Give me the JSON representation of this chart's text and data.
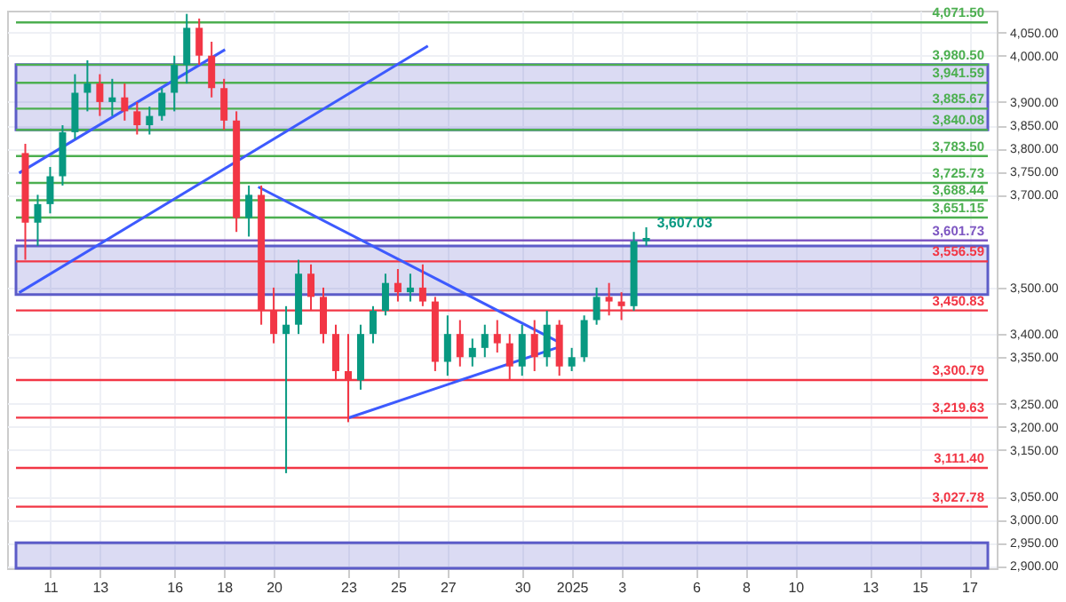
{
  "chart_data": {
    "type": "candlestick",
    "x": [
      "2024-12-10T00:00",
      "2024-12-10T12:00",
      "2024-12-11T00:00",
      "2024-12-11T12:00",
      "2024-12-12T00:00",
      "2024-12-12T12:00",
      "2024-12-13T00:00",
      "2024-12-13T12:00",
      "2024-12-14T00:00",
      "2024-12-14T12:00",
      "2024-12-15T00:00",
      "2024-12-15T12:00",
      "2024-12-16T00:00",
      "2024-12-16T12:00",
      "2024-12-17T00:00",
      "2024-12-17T12:00",
      "2024-12-18T00:00",
      "2024-12-18T12:00",
      "2024-12-19T00:00",
      "2024-12-19T12:00",
      "2024-12-20T00:00",
      "2024-12-20T12:00",
      "2024-12-21T00:00",
      "2024-12-21T12:00",
      "2024-12-22T00:00",
      "2024-12-22T12:00",
      "2024-12-23T00:00",
      "2024-12-23T12:00",
      "2024-12-24T00:00",
      "2024-12-24T12:00",
      "2024-12-25T00:00",
      "2024-12-25T12:00",
      "2024-12-26T00:00",
      "2024-12-26T12:00",
      "2024-12-27T00:00",
      "2024-12-27T12:00",
      "2024-12-28T00:00",
      "2024-12-28T12:00",
      "2024-12-29T00:00",
      "2024-12-29T12:00",
      "2024-12-30T00:00",
      "2024-12-30T12:00",
      "2024-12-31T00:00",
      "2024-12-31T12:00",
      "2025-01-01T00:00",
      "2025-01-01T12:00",
      "2025-01-02T00:00",
      "2025-01-02T12:00",
      "2025-01-03T00:00",
      "2025-01-03T12:00",
      "2025-01-04T00:00"
    ],
    "ohlc": [
      [
        3790,
        3810,
        3560,
        3640
      ],
      [
        3640,
        3700,
        3590,
        3680
      ],
      [
        3680,
        3760,
        3660,
        3740
      ],
      [
        3740,
        3850,
        3720,
        3835
      ],
      [
        3835,
        3960,
        3820,
        3920
      ],
      [
        3920,
        3990,
        3880,
        3940
      ],
      [
        3940,
        3960,
        3870,
        3900
      ],
      [
        3900,
        3950,
        3870,
        3910
      ],
      [
        3910,
        3940,
        3860,
        3880
      ],
      [
        3880,
        3900,
        3830,
        3850
      ],
      [
        3850,
        3890,
        3830,
        3870
      ],
      [
        3870,
        3930,
        3860,
        3920
      ],
      [
        3920,
        4000,
        3880,
        3980
      ],
      [
        3980,
        4090,
        3940,
        4060
      ],
      [
        4060,
        4080,
        3980,
        4000
      ],
      [
        4000,
        4030,
        3910,
        3930
      ],
      [
        3930,
        3950,
        3840,
        3860
      ],
      [
        3860,
        3880,
        3620,
        3650
      ],
      [
        3650,
        3720,
        3610,
        3700
      ],
      [
        3700,
        3720,
        3420,
        3450
      ],
      [
        3450,
        3500,
        3380,
        3400
      ],
      [
        3400,
        3460,
        3100,
        3420
      ],
      [
        3420,
        3560,
        3400,
        3530
      ],
      [
        3530,
        3550,
        3450,
        3480
      ],
      [
        3480,
        3500,
        3380,
        3400
      ],
      [
        3400,
        3420,
        3300,
        3320
      ],
      [
        3320,
        3400,
        3210,
        3300
      ],
      [
        3300,
        3420,
        3280,
        3400
      ],
      [
        3400,
        3460,
        3380,
        3450
      ],
      [
        3450,
        3530,
        3440,
        3510
      ],
      [
        3510,
        3540,
        3470,
        3490
      ],
      [
        3490,
        3530,
        3470,
        3500
      ],
      [
        3500,
        3550,
        3460,
        3470
      ],
      [
        3470,
        3480,
        3320,
        3340
      ],
      [
        3340,
        3440,
        3310,
        3400
      ],
      [
        3400,
        3430,
        3330,
        3350
      ],
      [
        3350,
        3390,
        3330,
        3370
      ],
      [
        3370,
        3420,
        3350,
        3400
      ],
      [
        3400,
        3430,
        3360,
        3380
      ],
      [
        3380,
        3400,
        3300,
        3330
      ],
      [
        3330,
        3420,
        3310,
        3400
      ],
      [
        3400,
        3430,
        3320,
        3350
      ],
      [
        3350,
        3450,
        3330,
        3420
      ],
      [
        3420,
        3430,
        3310,
        3330
      ],
      [
        3330,
        3370,
        3320,
        3350
      ],
      [
        3350,
        3440,
        3340,
        3430
      ],
      [
        3430,
        3500,
        3420,
        3480
      ],
      [
        3480,
        3510,
        3440,
        3470
      ],
      [
        3470,
        3490,
        3430,
        3460
      ],
      [
        3460,
        3620,
        3450,
        3600
      ],
      [
        3600,
        3630,
        3590,
        3607
      ]
    ],
    "colors": [
      "#f23645",
      "#089981",
      "#089981",
      "#089981",
      "#089981",
      "#089981",
      "#f23645",
      "#089981",
      "#f23645",
      "#f23645",
      "#089981",
      "#089981",
      "#089981",
      "#089981",
      "#f23645",
      "#f23645",
      "#f23645",
      "#f23645",
      "#089981",
      "#f23645",
      "#f23645",
      "#089981",
      "#089981",
      "#f23645",
      "#f23645",
      "#f23645",
      "#f23645",
      "#089981",
      "#089981",
      "#089981",
      "#f23645",
      "#089981",
      "#f23645",
      "#f23645",
      "#089981",
      "#f23645",
      "#089981",
      "#089981",
      "#f23645",
      "#f23645",
      "#089981",
      "#f23645",
      "#089981",
      "#f23645",
      "#089981",
      "#089981",
      "#089981",
      "#f23645",
      "#f23645",
      "#089981",
      "#089981"
    ],
    "xlim": [
      "2024-12-09T15:00",
      "2025-01-17T18:00"
    ],
    "xticks": [
      {
        "value": "2024-12-11",
        "label": "11"
      },
      {
        "value": "2024-12-13",
        "label": "13"
      },
      {
        "value": "2024-12-16",
        "label": "16"
      },
      {
        "value": "2024-12-18",
        "label": "18"
      },
      {
        "value": "2024-12-20",
        "label": "20"
      },
      {
        "value": "2024-12-23",
        "label": "23"
      },
      {
        "value": "2024-12-25",
        "label": "25"
      },
      {
        "value": "2024-12-27",
        "label": "27"
      },
      {
        "value": "2024-12-30",
        "label": "30"
      },
      {
        "value": "2025-01-01",
        "label": "2025"
      },
      {
        "value": "2025-01-03",
        "label": "3"
      },
      {
        "value": "2025-01-06",
        "label": "6"
      },
      {
        "value": "2025-01-08",
        "label": "8"
      },
      {
        "value": "2025-01-10",
        "label": "10"
      },
      {
        "value": "2025-01-13",
        "label": "13"
      },
      {
        "value": "2025-01-15",
        "label": "15"
      },
      {
        "value": "2025-01-17",
        "label": "17"
      }
    ],
    "ylim": [
      2895,
      4097
    ],
    "yticks": [
      {
        "value": 2900,
        "label": "2,900.00"
      },
      {
        "value": 2950,
        "label": "2,950.00"
      },
      {
        "value": 3000,
        "label": "3,000.00"
      },
      {
        "value": 3050,
        "label": "3,050.00"
      },
      {
        "value": 3150,
        "label": "3,150.00"
      },
      {
        "value": 3200,
        "label": "3,200.00"
      },
      {
        "value": 3250,
        "label": "3,250.00"
      },
      {
        "value": 3350,
        "label": "3,350.00"
      },
      {
        "value": 3400,
        "label": "3,400.00"
      },
      {
        "value": 3500,
        "label": "3,500.00"
      },
      {
        "value": 3700,
        "label": "3,700.00"
      },
      {
        "value": 3750,
        "label": "3,750.00"
      },
      {
        "value": 3800,
        "label": "3,800.00"
      },
      {
        "value": 3850,
        "label": "3,850.00"
      },
      {
        "value": 3900,
        "label": "3,900.00"
      },
      {
        "value": 4000,
        "label": "4,000.00"
      },
      {
        "value": 4050,
        "label": "4,050.00"
      }
    ],
    "grid": true,
    "ref_lines": [
      {
        "axis": "y",
        "value": 4071.5,
        "label": "4,071.50",
        "color": "#4caf50"
      },
      {
        "axis": "y",
        "value": 3980.5,
        "label": "3,980.50",
        "color": "#4caf50"
      },
      {
        "axis": "y",
        "value": 3941.59,
        "label": "3,941.59",
        "color": "#4caf50"
      },
      {
        "axis": "y",
        "value": 3885.67,
        "label": "3,885.67",
        "color": "#4caf50"
      },
      {
        "axis": "y",
        "value": 3840.08,
        "label": "3,840.08",
        "color": "#4caf50"
      },
      {
        "axis": "y",
        "value": 3783.5,
        "label": "3,783.50",
        "color": "#4caf50"
      },
      {
        "axis": "y",
        "value": 3725.73,
        "label": "3,725.73",
        "color": "#4caf50"
      },
      {
        "axis": "y",
        "value": 3688.44,
        "label": "3,688.44",
        "color": "#4caf50"
      },
      {
        "axis": "y",
        "value": 3651.15,
        "label": "3,651.15",
        "color": "#4caf50"
      },
      {
        "axis": "y",
        "value": 3601.73,
        "label": "3,601.73",
        "color": "#7e57c2"
      },
      {
        "axis": "y",
        "value": 3556.59,
        "label": "3,556.59",
        "color": "#f23645"
      },
      {
        "axis": "y",
        "value": 3450.83,
        "label": "3,450.83",
        "color": "#f23645"
      },
      {
        "axis": "y",
        "value": 3300.79,
        "label": "3,300.79",
        "color": "#f23645"
      },
      {
        "axis": "y",
        "value": 3219.63,
        "label": "3,219.63",
        "color": "#f23645"
      },
      {
        "axis": "y",
        "value": 3111.4,
        "label": "3,111.40",
        "color": "#f23645"
      },
      {
        "axis": "y",
        "value": 3027.78,
        "label": "3,027.78",
        "color": "#f23645"
      }
    ],
    "bands": [
      {
        "axis": "y",
        "from": 3840.08,
        "to": 3980.5,
        "color": "#5c5cc8"
      },
      {
        "axis": "y",
        "from": 3485,
        "to": 3590,
        "color": "#5c5cc8"
      },
      {
        "axis": "y",
        "from": 2895,
        "to": 2950,
        "color": "#5c5cc8"
      }
    ],
    "series": [
      {
        "type": "line",
        "color": "#3d5afe",
        "x": [
          "2024-12-09T18:00",
          "2024-12-26T05:00"
        ],
        "values": [
          3489,
          4021
        ]
      },
      {
        "type": "line",
        "color": "#3d5afe",
        "x": [
          "2024-12-09T18:00",
          "2024-12-18T01:00"
        ],
        "values": [
          3747,
          4013
        ]
      },
      {
        "type": "line",
        "color": "#3d5afe",
        "x": [
          "2024-12-19T09:00",
          "2024-12-31T12:00"
        ],
        "values": [
          3717,
          3382
        ]
      },
      {
        "type": "line",
        "color": "#3d5afe",
        "x": [
          "2024-12-23T00:00",
          "2024-12-31T09:00"
        ],
        "values": [
          3219,
          3370
        ]
      }
    ],
    "annotations": [
      {
        "text": "3,607.03",
        "x": "2025-01-04T00:00",
        "y": 3607.03
      }
    ]
  }
}
